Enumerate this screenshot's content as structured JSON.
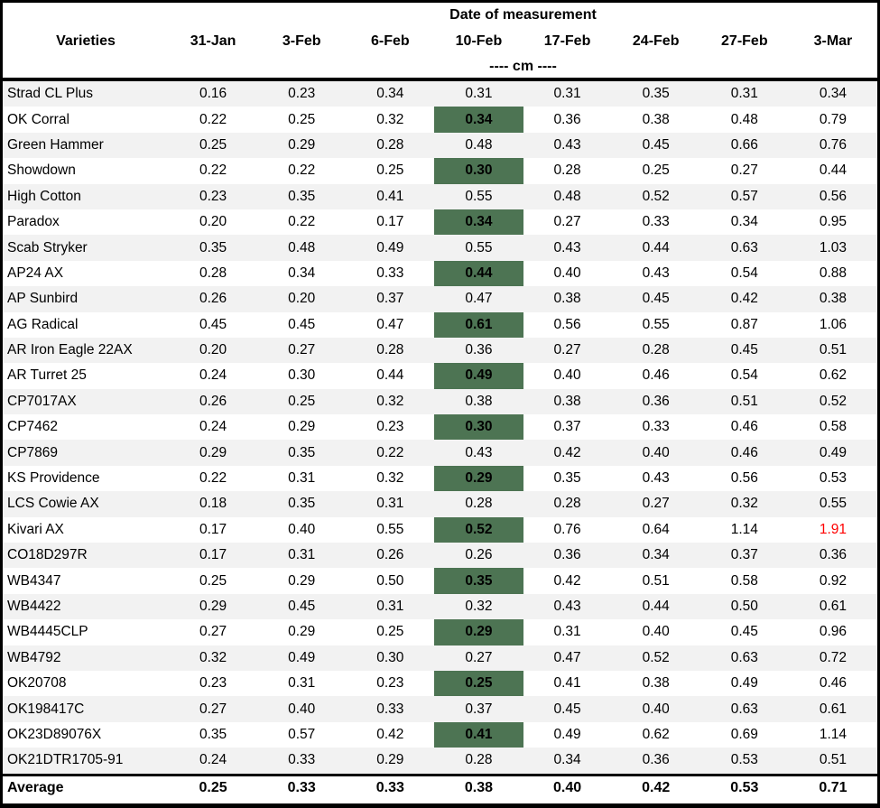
{
  "colors": {
    "highlight_green": "#4d7453",
    "stripe_gray": "#f2f2f2",
    "alert_red": "#ff0000",
    "border_black": "#000000"
  },
  "chart_data": {
    "type": "table",
    "title": "Date of measurement",
    "unit_row": "---- cm ----",
    "columns": [
      "Varieties",
      "31-Jan",
      "3-Feb",
      "6-Feb",
      "10-Feb",
      "17-Feb",
      "24-Feb",
      "27-Feb",
      "3-Mar"
    ],
    "highlight_column": "10-Feb",
    "highlight_style": "bold text on dark green fill",
    "rows": [
      {
        "variety": "Strad CL Plus",
        "values": [
          "0.16",
          "0.23",
          "0.34",
          "0.31",
          "0.31",
          "0.35",
          "0.31",
          "0.34"
        ],
        "highlight": false
      },
      {
        "variety": "OK Corral",
        "values": [
          "0.22",
          "0.25",
          "0.32",
          "0.34",
          "0.36",
          "0.38",
          "0.48",
          "0.79"
        ],
        "highlight": true
      },
      {
        "variety": "Green Hammer",
        "values": [
          "0.25",
          "0.29",
          "0.28",
          "0.48",
          "0.43",
          "0.45",
          "0.66",
          "0.76"
        ],
        "highlight": false
      },
      {
        "variety": "Showdown",
        "values": [
          "0.22",
          "0.22",
          "0.25",
          "0.30",
          "0.28",
          "0.25",
          "0.27",
          "0.44"
        ],
        "highlight": true
      },
      {
        "variety": "High Cotton",
        "values": [
          "0.23",
          "0.35",
          "0.41",
          "0.55",
          "0.48",
          "0.52",
          "0.57",
          "0.56"
        ],
        "highlight": false
      },
      {
        "variety": "Paradox",
        "values": [
          "0.20",
          "0.22",
          "0.17",
          "0.34",
          "0.27",
          "0.33",
          "0.34",
          "0.95"
        ],
        "highlight": true
      },
      {
        "variety": "Scab Stryker",
        "values": [
          "0.35",
          "0.48",
          "0.49",
          "0.55",
          "0.43",
          "0.44",
          "0.63",
          "1.03"
        ],
        "highlight": false
      },
      {
        "variety": "AP24 AX",
        "values": [
          "0.28",
          "0.34",
          "0.33",
          "0.44",
          "0.40",
          "0.43",
          "0.54",
          "0.88"
        ],
        "highlight": true
      },
      {
        "variety": "AP Sunbird",
        "values": [
          "0.26",
          "0.20",
          "0.37",
          "0.47",
          "0.38",
          "0.45",
          "0.42",
          "0.38"
        ],
        "highlight": false
      },
      {
        "variety": "AG Radical",
        "values": [
          "0.45",
          "0.45",
          "0.47",
          "0.61",
          "0.56",
          "0.55",
          "0.87",
          "1.06"
        ],
        "highlight": true
      },
      {
        "variety": "AR Iron Eagle 22AX",
        "values": [
          "0.20",
          "0.27",
          "0.28",
          "0.36",
          "0.27",
          "0.28",
          "0.45",
          "0.51"
        ],
        "highlight": false
      },
      {
        "variety": "AR Turret 25",
        "values": [
          "0.24",
          "0.30",
          "0.44",
          "0.49",
          "0.40",
          "0.46",
          "0.54",
          "0.62"
        ],
        "highlight": true
      },
      {
        "variety": "CP7017AX",
        "values": [
          "0.26",
          "0.25",
          "0.32",
          "0.38",
          "0.38",
          "0.36",
          "0.51",
          "0.52"
        ],
        "highlight": false
      },
      {
        "variety": "CP7462",
        "values": [
          "0.24",
          "0.29",
          "0.23",
          "0.30",
          "0.37",
          "0.33",
          "0.46",
          "0.58"
        ],
        "highlight": true
      },
      {
        "variety": "CP7869",
        "values": [
          "0.29",
          "0.35",
          "0.22",
          "0.43",
          "0.42",
          "0.40",
          "0.46",
          "0.49"
        ],
        "highlight": false
      },
      {
        "variety": "KS Providence",
        "values": [
          "0.22",
          "0.31",
          "0.32",
          "0.29",
          "0.35",
          "0.43",
          "0.56",
          "0.53"
        ],
        "highlight": true
      },
      {
        "variety": "LCS Cowie AX",
        "values": [
          "0.18",
          "0.35",
          "0.31",
          "0.28",
          "0.28",
          "0.27",
          "0.32",
          "0.55"
        ],
        "highlight": false
      },
      {
        "variety": "Kivari AX",
        "values": [
          "0.17",
          "0.40",
          "0.55",
          "0.52",
          "0.76",
          "0.64",
          "1.14",
          "1.91"
        ],
        "highlight": true,
        "red_value_index": 7
      },
      {
        "variety": "CO18D297R",
        "values": [
          "0.17",
          "0.31",
          "0.26",
          "0.26",
          "0.36",
          "0.34",
          "0.37",
          "0.36"
        ],
        "highlight": false
      },
      {
        "variety": "WB4347",
        "values": [
          "0.25",
          "0.29",
          "0.50",
          "0.35",
          "0.42",
          "0.51",
          "0.58",
          "0.92"
        ],
        "highlight": true
      },
      {
        "variety": "WB4422",
        "values": [
          "0.29",
          "0.45",
          "0.31",
          "0.32",
          "0.43",
          "0.44",
          "0.50",
          "0.61"
        ],
        "highlight": false
      },
      {
        "variety": "WB4445CLP",
        "values": [
          "0.27",
          "0.29",
          "0.25",
          "0.29",
          "0.31",
          "0.40",
          "0.45",
          "0.96"
        ],
        "highlight": true
      },
      {
        "variety": "WB4792",
        "values": [
          "0.32",
          "0.49",
          "0.30",
          "0.27",
          "0.47",
          "0.52",
          "0.63",
          "0.72"
        ],
        "highlight": false
      },
      {
        "variety": "OK20708",
        "values": [
          "0.23",
          "0.31",
          "0.23",
          "0.25",
          "0.41",
          "0.38",
          "0.49",
          "0.46"
        ],
        "highlight": true
      },
      {
        "variety": "OK198417C",
        "values": [
          "0.27",
          "0.40",
          "0.33",
          "0.37",
          "0.45",
          "0.40",
          "0.63",
          "0.61"
        ],
        "highlight": false
      },
      {
        "variety": "OK23D89076X",
        "values": [
          "0.35",
          "0.57",
          "0.42",
          "0.41",
          "0.49",
          "0.62",
          "0.69",
          "1.14"
        ],
        "highlight": true
      },
      {
        "variety": "OK21DTR1705-91",
        "values": [
          "0.24",
          "0.33",
          "0.29",
          "0.28",
          "0.34",
          "0.36",
          "0.53",
          "0.51"
        ],
        "highlight": false
      }
    ],
    "average_row": {
      "label": "Average",
      "values": [
        "0.25",
        "0.33",
        "0.33",
        "0.38",
        "0.40",
        "0.42",
        "0.53",
        "0.71"
      ]
    }
  }
}
